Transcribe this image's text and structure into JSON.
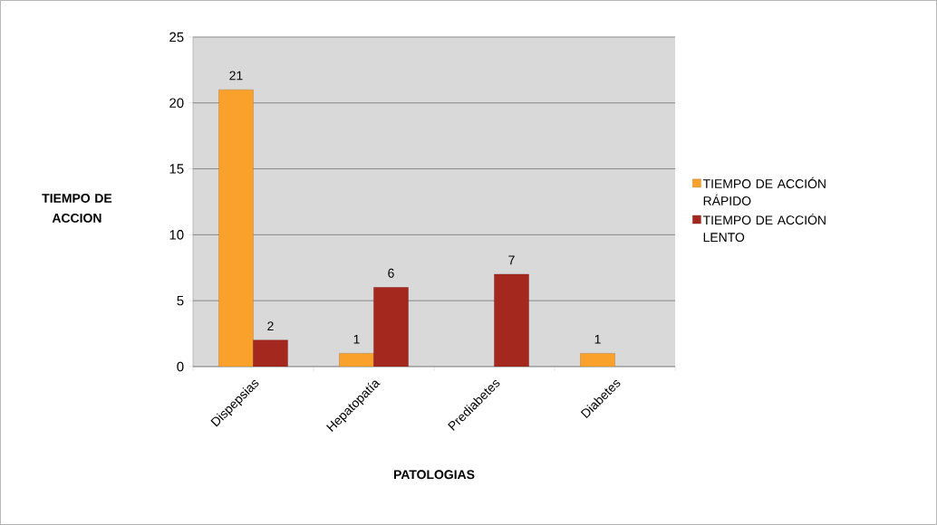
{
  "chart_data": {
    "type": "bar",
    "xlabel": "PATOLOGIAS",
    "ylabel": "TIEMPO DE ACCION",
    "categories": [
      "Dispepsias",
      "Hepatopatía",
      "Prediabetes",
      "Diabetes"
    ],
    "series": [
      {
        "name": "TIEMPO DE ACCIÓN RÁPIDO",
        "color": "#f9a12b",
        "values": [
          21,
          1,
          null,
          1
        ]
      },
      {
        "name": "TIEMPO DE ACCIÓN LENTO",
        "color": "#a5281f",
        "values": [
          2,
          6,
          7,
          null
        ]
      }
    ],
    "ylim": [
      0,
      25
    ],
    "yticks": [
      0,
      5,
      10,
      15,
      20,
      25
    ],
    "grid": "y",
    "legend": "right",
    "data_labels": true
  }
}
